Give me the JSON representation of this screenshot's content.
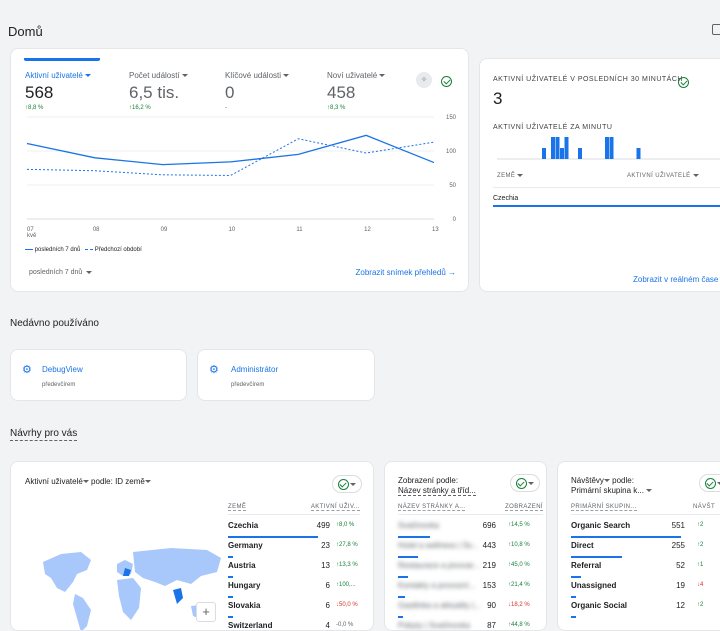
{
  "header": {
    "title": "Domů"
  },
  "overview": {
    "metrics": [
      {
        "label": "Aktivní uživatelé",
        "value": "568",
        "change": "8,8 %"
      },
      {
        "label": "Počet událostí",
        "value": "6,5 tis.",
        "change": "16,2 %"
      },
      {
        "label": "Klíčové události",
        "value": "0",
        "change": "-"
      },
      {
        "label": "Noví uživatelé",
        "value": "458",
        "change": "8,3 %"
      }
    ],
    "x_month": "kvě",
    "legend_current": "posledních 7 dnů",
    "legend_previous": "Předchozí období",
    "date_range": "posledních 7 dnů",
    "link": "Zobrazit snímek přehledů"
  },
  "chart_data": {
    "type": "line",
    "x": [
      "07",
      "08",
      "09",
      "10",
      "11",
      "12",
      "13"
    ],
    "yticks": [
      "150",
      "100",
      "50",
      "0"
    ],
    "ylim": [
      0,
      150
    ],
    "series": [
      {
        "name": "posledních 7 dnů",
        "values": [
          111,
          90,
          80,
          84,
          95,
          123,
          83
        ]
      },
      {
        "name": "Předchozí období",
        "values": [
          73,
          71,
          65,
          64,
          118,
          97,
          113
        ]
      }
    ],
    "color_current": "#1a73e8",
    "color_previous": "#1a73e8"
  },
  "realtime": {
    "title": "AKTIVNÍ UŽIVATELÉ V POSLEDNÍCH 30 MINUTÁCH",
    "value": "3",
    "per_minute_label": "AKTIVNÍ UŽIVATELÉ ZA MINUTU",
    "per_minute_values": [
      0,
      0,
      0,
      0,
      0,
      0,
      0,
      0,
      0,
      0,
      1,
      0,
      2,
      2,
      1,
      2,
      0,
      0,
      1,
      0,
      0,
      0,
      0,
      0,
      2,
      2,
      0,
      0,
      0,
      0,
      0,
      1,
      0,
      0,
      0,
      0,
      0,
      0,
      0,
      0,
      0,
      0,
      0,
      0,
      0,
      0,
      0,
      0,
      0,
      0
    ],
    "col_country": "ZEMĚ",
    "col_users": "AKTIVNÍ UŽIVATELÉ",
    "row_country": "Czechia",
    "link": "Zobrazit v reálném čase"
  },
  "recent": {
    "heading": "Nedávno používáno",
    "items": [
      {
        "title": "DebugView",
        "subtitle": "předevčírem"
      },
      {
        "title": "Administrátor",
        "subtitle": "předevčírem"
      }
    ]
  },
  "suggestions": {
    "heading": "Návrhy pro vás",
    "map_card": {
      "title": "Aktivní uživatelé",
      "by": "podle:",
      "dimension": "ID země",
      "col_country": "ZEMĚ",
      "col_users": "AKTIVNÍ UŽIV...",
      "rows": [
        {
          "country": "Czechia",
          "value": "499",
          "change": "8,0 %",
          "dir": "up",
          "share": 1.0
        },
        {
          "country": "Germany",
          "value": "23",
          "change": "27,8 %",
          "dir": "up",
          "share": 0.046
        },
        {
          "country": "Austria",
          "value": "13",
          "change": "13,3 %",
          "dir": "up",
          "share": 0.026
        },
        {
          "country": "Hungary",
          "value": "6",
          "change": "100,...",
          "dir": "up",
          "share": 0.012
        },
        {
          "country": "Slovakia",
          "value": "6",
          "change": "50,0 %",
          "dir": "down",
          "share": 0.012
        },
        {
          "country": "Switzerland",
          "value": "4",
          "change": "0,0 %",
          "dir": "none",
          "share": 0.008
        }
      ],
      "zoom": "+"
    },
    "views_card": {
      "title1": "Zobrazení podle:",
      "title2": "Název stránky a tříd...",
      "col_a": "NÁZEV STRÁNKY A...",
      "col_b": "ZOBRAZENÍ",
      "rows": [
        {
          "page": "Svačinovka",
          "value": "696",
          "change": "14,5 %",
          "dir": "up",
          "share": 1.0
        },
        {
          "page": "Hotel a wellness | Sv...",
          "value": "443",
          "change": "10,8 %",
          "dir": "up",
          "share": 0.64
        },
        {
          "page": "Restaurace a pivovar...",
          "value": "219",
          "change": "45,0 %",
          "dir": "up",
          "share": 0.31
        },
        {
          "page": "Kontakty a provozní...",
          "value": "153",
          "change": "21,4 %",
          "dir": "up",
          "share": 0.22
        },
        {
          "page": "Gastlinka a aktuality |...",
          "value": "90",
          "change": "18,2 %",
          "dir": "down",
          "share": 0.13
        },
        {
          "page": "Pobyty | Svačinovka",
          "value": "87",
          "change": "44,8 %",
          "dir": "up",
          "share": 0.12
        }
      ]
    },
    "sessions_card": {
      "title1": "Návštěvy",
      "by": "podle:",
      "title2": "Primární skupina k...",
      "col_a": "PRIMÁRNÍ SKUPIN...",
      "col_b": "NÁVŠT",
      "rows": [
        {
          "channel": "Organic Search",
          "value": "551",
          "change": "2",
          "dir": "up",
          "share": 1.0
        },
        {
          "channel": "Direct",
          "value": "255",
          "change": "2",
          "dir": "up",
          "share": 0.46
        },
        {
          "channel": "Referral",
          "value": "52",
          "change": "1",
          "dir": "up",
          "share": 0.09
        },
        {
          "channel": "Unassigned",
          "value": "19",
          "change": "4",
          "dir": "down",
          "share": 0.03
        },
        {
          "channel": "Organic Social",
          "value": "12",
          "change": "2",
          "dir": "up",
          "share": 0.02
        }
      ]
    }
  }
}
